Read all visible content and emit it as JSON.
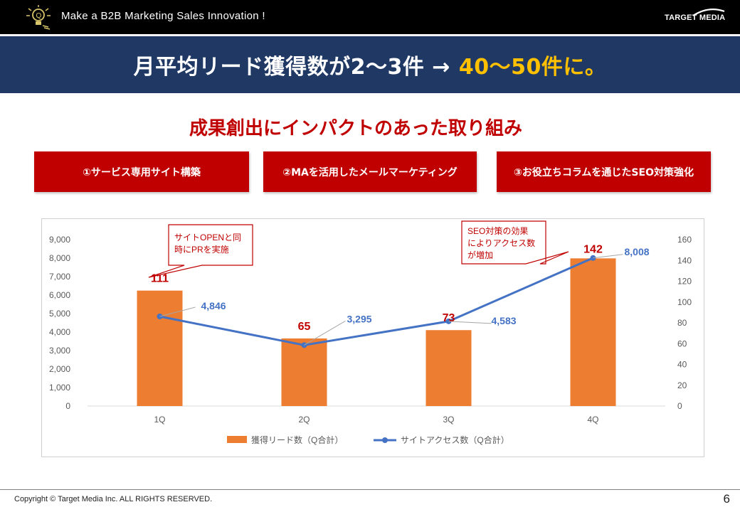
{
  "header": {
    "tagline": "Make a B2B Marketing Sales Innovation !",
    "logo_text": "TARGET MEDIA",
    "logo_icon": "lightbulb-icon"
  },
  "banner": {
    "title_main": "月平均リード獲得数が2～3件 →",
    "title_highlight": "40～50件に。"
  },
  "subtitle": "成果創出にインパクトのあった取り組み",
  "initiatives": [
    "①サービス専用サイト構築",
    "②MAを活用したメールマーケティング",
    "③お役立ちコラムを通じたSEO対策強化"
  ],
  "callouts": [
    {
      "text_lines": [
        "サイトOPENと同",
        "時にPRを実施"
      ]
    },
    {
      "text_lines": [
        "SEO対策の効果",
        "によりアクセス数",
        "が増加"
      ]
    }
  ],
  "chart_data": {
    "type": "bar",
    "categories": [
      "1Q",
      "2Q",
      "3Q",
      "4Q"
    ],
    "series": [
      {
        "name": "獲得リード数（Q合計）",
        "type": "bar",
        "axis": "right",
        "values": [
          111,
          65,
          73,
          142
        ],
        "color": "#ed7d31"
      },
      {
        "name": "サイトアクセス数（Q合計）",
        "type": "line",
        "axis": "left",
        "values": [
          4846,
          3295,
          4583,
          8008
        ],
        "color": "#4472c4"
      }
    ],
    "bar_labels": [
      "111",
      "65",
      "73",
      "142"
    ],
    "line_labels": [
      "4,846",
      "3,295",
      "4,583",
      "8,008"
    ],
    "left_axis": {
      "ylim": [
        0,
        9000
      ],
      "ticks": [
        "0",
        "1,000",
        "2,000",
        "3,000",
        "4,000",
        "5,000",
        "6,000",
        "7,000",
        "8,000",
        "9,000"
      ]
    },
    "right_axis": {
      "ylim": [
        0,
        160
      ],
      "ticks": [
        "0",
        "20",
        "40",
        "60",
        "80",
        "100",
        "120",
        "140",
        "160"
      ]
    },
    "legend_position": "bottom",
    "grid": false,
    "colors": {
      "bar_label": "#c00000",
      "line_label": "#4472c4",
      "callout_border": "#c00000"
    }
  },
  "footer": {
    "copyright": "Copyright © Target Media Inc. ALL RIGHTS RESERVED.",
    "page_number": "6"
  }
}
